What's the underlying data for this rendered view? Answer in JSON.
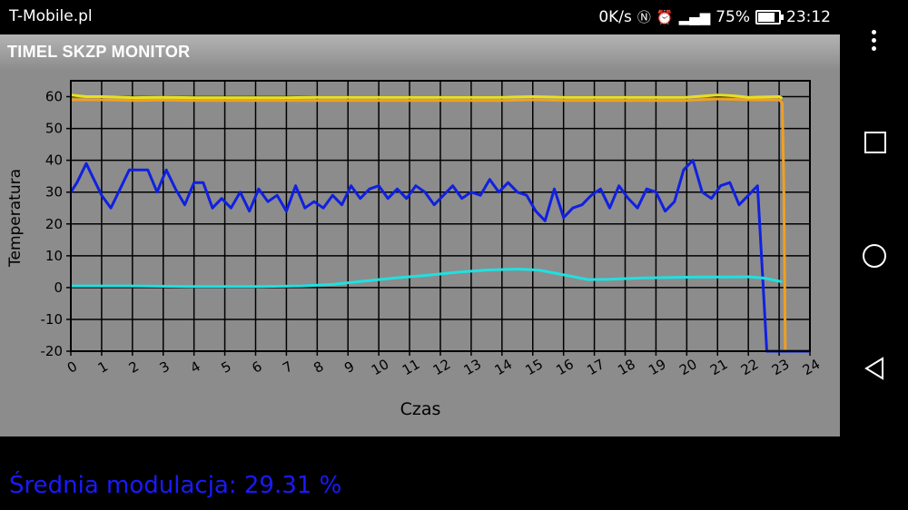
{
  "status_bar": {
    "carrier": "T-Mobile.pl",
    "network_speed": "0K/s",
    "battery": "75%",
    "time": "23:12"
  },
  "app": {
    "title": "TIMEL SKZP MONITOR"
  },
  "footer": {
    "average_modulation": "Średnia modulacja: 29.31 %"
  },
  "chart_data": {
    "type": "line",
    "xlabel": "Czas",
    "ylabel": "Temperatura",
    "xlim": [
      0,
      24
    ],
    "ylim": [
      -20,
      65
    ],
    "x_ticks": [
      "0",
      "1",
      "2",
      "3",
      "4",
      "5",
      "6",
      "7",
      "8",
      "9",
      "10",
      "11",
      "12",
      "13",
      "14",
      "15",
      "16",
      "17",
      "18",
      "19",
      "20",
      "21",
      "22",
      "23",
      "24"
    ],
    "y_ticks": [
      "-20",
      "-10",
      "0",
      "10",
      "20",
      "30",
      "40",
      "50",
      "60"
    ],
    "grid": true,
    "legend": "none",
    "series": [
      {
        "color": "#f0a020",
        "x": [
          0,
          1,
          2,
          3,
          4,
          5,
          6,
          7,
          8,
          9,
          10,
          11,
          12,
          13,
          14,
          15,
          16,
          17,
          18,
          19,
          20,
          21,
          22,
          23,
          23.1,
          23.15,
          23.2,
          23.3,
          24
        ],
        "y": [
          59,
          59,
          58.8,
          58.9,
          58.8,
          58.8,
          58.8,
          58.8,
          58.8,
          58.8,
          58.8,
          58.8,
          58.8,
          58.8,
          58.8,
          59,
          58.8,
          58.8,
          58.8,
          58.8,
          58.8,
          59.3,
          59,
          59,
          58,
          33,
          -20,
          -20,
          -20
        ]
      },
      {
        "color": "#e8e020",
        "x": [
          0,
          0.5,
          1,
          2,
          3,
          4,
          5,
          6,
          7,
          8,
          9,
          10,
          11,
          12,
          13,
          14,
          15,
          16,
          17,
          18,
          19,
          20,
          21,
          21.5,
          22,
          23,
          23.1
        ],
        "y": [
          60.5,
          60,
          60,
          59.7,
          59.8,
          59.7,
          59.7,
          59.7,
          59.7,
          59.8,
          59.8,
          59.8,
          59.8,
          59.8,
          59.8,
          59.8,
          60,
          59.8,
          59.8,
          59.8,
          59.8,
          59.8,
          60.5,
          60.3,
          59.8,
          60,
          59.5
        ]
      },
      {
        "color": "#1020e0",
        "x": [
          0,
          0.2,
          0.5,
          0.7,
          1.0,
          1.3,
          1.6,
          1.9,
          2.2,
          2.5,
          2.8,
          3.1,
          3.4,
          3.7,
          4.0,
          4.3,
          4.6,
          4.9,
          5.2,
          5.5,
          5.8,
          6.1,
          6.4,
          6.7,
          7.0,
          7.3,
          7.6,
          7.9,
          8.2,
          8.5,
          8.8,
          9.1,
          9.4,
          9.7,
          10.0,
          10.3,
          10.6,
          10.9,
          11.2,
          11.5,
          11.8,
          12.1,
          12.4,
          12.7,
          13.0,
          13.3,
          13.6,
          13.9,
          14.2,
          14.5,
          14.8,
          15.1,
          15.4,
          15.7,
          16.0,
          16.3,
          16.6,
          16.9,
          17.2,
          17.5,
          17.8,
          18.1,
          18.4,
          18.7,
          19.0,
          19.3,
          19.6,
          19.9,
          20.2,
          20.5,
          20.8,
          21.1,
          21.4,
          21.7,
          22.0,
          22.3,
          22.6,
          22.9,
          23.1,
          23.15,
          23.2,
          23.3,
          24
        ],
        "y": [
          30,
          33,
          39,
          35,
          29,
          25,
          31,
          37,
          37,
          37,
          30,
          37,
          31,
          26,
          33,
          33,
          25,
          28,
          25,
          30,
          24,
          31,
          27,
          29,
          24,
          32,
          25,
          27,
          25,
          29,
          26,
          32,
          28,
          31,
          32,
          28,
          31,
          28,
          32,
          30,
          26,
          29,
          32,
          28,
          30,
          29,
          34,
          30,
          33,
          30,
          29,
          24,
          21,
          31,
          22,
          25,
          26,
          29,
          31,
          25,
          32,
          28,
          25,
          31,
          30,
          24,
          27,
          37,
          40,
          30,
          28,
          32,
          33,
          26,
          29,
          32,
          -20,
          -20,
          -20,
          -20,
          -20,
          -20,
          -20
        ]
      },
      {
        "color": "#20e0e0",
        "x": [
          0,
          2,
          4,
          6,
          7.5,
          8.5,
          9.5,
          10.5,
          11.5,
          12.5,
          13.5,
          14.5,
          15.2,
          16,
          16.8,
          17.5,
          18.5,
          19.5,
          20.5,
          21.5,
          22,
          22.5,
          23,
          23.1
        ],
        "y": [
          0.5,
          0.5,
          0.3,
          0.3,
          0.5,
          1.0,
          2.0,
          3.0,
          3.8,
          4.8,
          5.5,
          5.8,
          5.5,
          4.0,
          2.5,
          2.6,
          3.0,
          3.2,
          3.3,
          3.3,
          3.4,
          3.0,
          2.0,
          1.8
        ]
      }
    ]
  }
}
